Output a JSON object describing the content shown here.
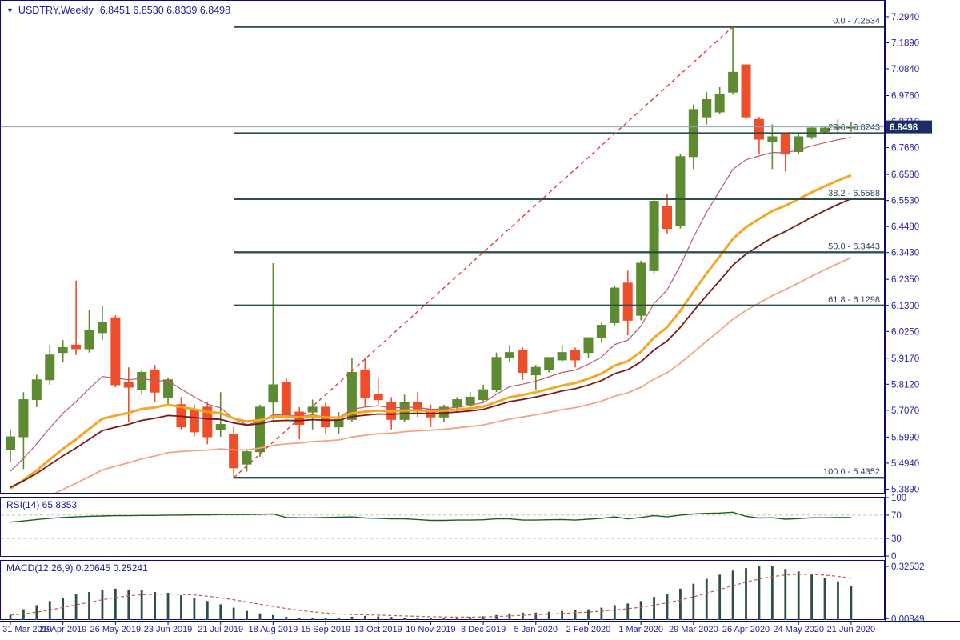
{
  "header": {
    "marker": "▼",
    "symbol": "USDTRY,Weekly",
    "quote_line": "6.8451 6.8530 6.8339 6.8498"
  },
  "rsi_panel": {
    "label": "RSI(14) 65.8353",
    "axis_labels": [
      "100",
      "70",
      "30",
      "0"
    ]
  },
  "macd_panel": {
    "label": "MACD(12,26,9) 0.20645 0.25241",
    "axis_max_label": "0.32532",
    "axis_min_label": "0.00849"
  },
  "price_axis": {
    "labels": [
      "7.2940",
      "7.1890",
      "7.0840",
      "6.9760",
      "6.8710",
      "6.7660",
      "6.6580",
      "6.5530",
      "6.4480",
      "6.3430",
      "6.2350",
      "6.1300",
      "6.0250",
      "5.9170",
      "5.8120",
      "5.7070",
      "5.5990",
      "5.4940",
      "5.3890"
    ],
    "current_price_label": "6.8498"
  },
  "colors": {
    "background": "#ffffff",
    "bull_candle": "#5d8b31",
    "bear_candle": "#ef4e2b",
    "axis_text": "#2525a0",
    "panel_border": "#0a0a70",
    "fib_line": "#2d4f47",
    "fib_text": "#2d3f66",
    "trendline": "#dd3b3b",
    "current_price_line": "#93a3b8",
    "price_badge_bg": "#1b2d66",
    "price_badge_text": "#ffffff",
    "ma_fast": "#bd5a66",
    "ma_medium": "#f5a623",
    "ma_slow": "#7a1b17",
    "ma_slowest": "#f2a482",
    "rsi_line": "#156315",
    "rsi_levels": "#c4c4c4",
    "macd_bars": "#2e4f45",
    "macd_signal": "#c4585a",
    "title_text": "#1b1b9e"
  },
  "chart_data": {
    "type": "candlestick",
    "symbol": "USDTRY",
    "timeframe": "Weekly",
    "quote": {
      "open": 6.8451,
      "high": 6.853,
      "low": 6.8339,
      "close": 6.8498
    },
    "current_price": 6.8498,
    "dates": [
      "31 Mar 2019",
      "28 Apr 2019",
      "26 May 2019",
      "23 Jun 2019",
      "21 Jul 2019",
      "18 Aug 2019",
      "15 Sep 2019",
      "13 Oct 2019",
      "10 Nov 2019",
      "8 Dec 2019",
      "5 Jan 2020",
      "2 Feb 2020",
      "1 Mar 2020",
      "29 Mar 2020",
      "26 Apr 2020",
      "24 May 2020",
      "21 Jun 2020"
    ],
    "date_label_step": 4,
    "candles": [
      [
        5.55,
        5.63,
        5.5,
        5.6
      ],
      [
        5.6,
        5.78,
        5.47,
        5.75
      ],
      [
        5.75,
        5.85,
        5.72,
        5.83
      ],
      [
        5.83,
        5.97,
        5.81,
        5.93
      ],
      [
        5.94,
        5.99,
        5.9,
        5.96
      ],
      [
        5.97,
        6.23,
        5.93,
        5.955
      ],
      [
        5.955,
        6.11,
        5.94,
        6.03
      ],
      [
        6.02,
        6.13,
        5.99,
        6.06
      ],
      [
        6.08,
        6.09,
        5.8,
        5.81
      ],
      [
        5.82,
        5.88,
        5.66,
        5.8
      ],
      [
        5.79,
        5.87,
        5.77,
        5.86
      ],
      [
        5.87,
        5.89,
        5.74,
        5.78
      ],
      [
        5.76,
        5.84,
        5.73,
        5.83
      ],
      [
        5.73,
        5.76,
        5.63,
        5.64
      ],
      [
        5.71,
        5.73,
        5.6,
        5.62
      ],
      [
        5.72,
        5.74,
        5.57,
        5.6
      ],
      [
        5.63,
        5.78,
        5.6,
        5.65
      ],
      [
        5.61,
        5.64,
        5.4352,
        5.475
      ],
      [
        5.49,
        5.55,
        5.46,
        5.54
      ],
      [
        5.54,
        5.73,
        5.52,
        5.72
      ],
      [
        5.74,
        6.3,
        5.67,
        5.81
      ],
      [
        5.82,
        5.84,
        5.67,
        5.69
      ],
      [
        5.7,
        5.72,
        5.59,
        5.65
      ],
      [
        5.7,
        5.75,
        5.63,
        5.72
      ],
      [
        5.72,
        5.74,
        5.61,
        5.64
      ],
      [
        5.64,
        5.7,
        5.61,
        5.67
      ],
      [
        5.67,
        5.92,
        5.66,
        5.86
      ],
      [
        5.87,
        5.92,
        5.72,
        5.76
      ],
      [
        5.77,
        5.84,
        5.73,
        5.75
      ],
      [
        5.74,
        5.76,
        5.63,
        5.67
      ],
      [
        5.67,
        5.77,
        5.66,
        5.74
      ],
      [
        5.74,
        5.78,
        5.68,
        5.71
      ],
      [
        5.71,
        5.73,
        5.64,
        5.68
      ],
      [
        5.68,
        5.73,
        5.66,
        5.72
      ],
      [
        5.72,
        5.76,
        5.7,
        5.75
      ],
      [
        5.73,
        5.78,
        5.71,
        5.76
      ],
      [
        5.75,
        5.81,
        5.74,
        5.79
      ],
      [
        5.79,
        5.94,
        5.78,
        5.92
      ],
      [
        5.92,
        5.97,
        5.9,
        5.94
      ],
      [
        5.95,
        5.96,
        5.83,
        5.86
      ],
      [
        5.85,
        5.89,
        5.79,
        5.88
      ],
      [
        5.87,
        5.92,
        5.86,
        5.92
      ],
      [
        5.91,
        5.97,
        5.9,
        5.94
      ],
      [
        5.95,
        5.96,
        5.88,
        5.91
      ],
      [
        5.94,
        6.0,
        5.92,
        6.0
      ],
      [
        6.0,
        6.06,
        5.98,
        6.05
      ],
      [
        6.06,
        6.21,
        6.05,
        6.2
      ],
      [
        6.22,
        6.27,
        6.01,
        6.07
      ],
      [
        6.09,
        6.31,
        6.07,
        6.3
      ],
      [
        6.27,
        6.56,
        6.26,
        6.55
      ],
      [
        6.53,
        6.58,
        6.42,
        6.44
      ],
      [
        6.45,
        6.74,
        6.44,
        6.73
      ],
      [
        6.73,
        6.94,
        6.68,
        6.92
      ],
      [
        6.89,
        6.99,
        6.86,
        6.96
      ],
      [
        6.91,
        7.01,
        6.9,
        6.98
      ],
      [
        6.99,
        7.2534,
        6.98,
        7.07
      ],
      [
        7.1,
        7.1,
        6.88,
        6.89
      ],
      [
        6.88,
        6.89,
        6.74,
        6.8
      ],
      [
        6.79,
        6.86,
        6.68,
        6.81
      ],
      [
        6.82,
        6.82,
        6.67,
        6.74
      ],
      [
        6.75,
        6.82,
        6.74,
        6.81
      ],
      [
        6.81,
        6.85,
        6.8,
        6.845
      ],
      [
        6.83,
        6.85,
        6.82,
        6.845
      ],
      [
        6.845,
        6.88,
        6.82,
        6.852
      ],
      [
        6.848,
        6.87,
        6.83,
        6.8498
      ]
    ],
    "fibonacci": {
      "anchor_index": 17,
      "levels": [
        {
          "label": "0.0 - 7.2534",
          "price": 7.2534
        },
        {
          "label": "23.6 - 6.8243",
          "price": 6.8243
        },
        {
          "label": "38.2 - 6.5588",
          "price": 6.5588
        },
        {
          "label": "50.0 - 6.3443",
          "price": 6.3443
        },
        {
          "label": "61.8 - 6.1298",
          "price": 6.1298
        },
        {
          "label": "100.0 - 5.4352",
          "price": 5.4352
        }
      ]
    },
    "trendline": {
      "from_index": 17,
      "from_price": 5.4352,
      "to_index": 55,
      "to_price": 7.2534
    },
    "moving_averages": [
      {
        "name": "ma-fast",
        "period": 10,
        "seed": 5.43,
        "color_key": "ma_fast",
        "width": 1.2
      },
      {
        "name": "ma-medium",
        "period": 20,
        "seed": 5.37,
        "color_key": "ma_medium",
        "width": 3
      },
      {
        "name": "ma-slow",
        "period": 26,
        "seed": 5.38,
        "color_key": "ma_slow",
        "width": 1.8
      },
      {
        "name": "ma-slowest",
        "period": 45,
        "seed": 5.28,
        "color_key": "ma_slowest",
        "width": 1.8
      }
    ],
    "rsi": {
      "period": 14,
      "value": 65.8353,
      "levels": [
        70,
        30
      ],
      "range": [
        0,
        100
      ],
      "values": [
        58,
        60,
        62.5,
        64.5,
        66,
        67,
        68,
        68.5,
        69,
        69,
        69.5,
        69.5,
        70,
        70,
        70.5,
        70.5,
        71,
        71,
        71,
        71.5,
        72,
        66,
        65.5,
        65.5,
        66,
        66.5,
        67,
        65,
        64.5,
        63.5,
        63.5,
        62.5,
        61,
        61,
        61.5,
        61.5,
        62,
        63.5,
        63.5,
        61.5,
        61.5,
        62,
        62.5,
        61.5,
        63,
        64.5,
        67,
        63.5,
        66,
        69,
        67,
        70,
        72,
        73,
        73.5,
        75,
        68,
        65,
        65.5,
        63,
        64,
        65.5,
        65.5,
        66,
        65.8
      ]
    },
    "macd": {
      "fast": 12,
      "slow": 26,
      "signal": 9,
      "value_main": 0.20645,
      "value_signal": 0.25241,
      "axis_max": 0.32532,
      "axis_min": 0.00849,
      "histogram": [
        0.03,
        0.065,
        0.09,
        0.115,
        0.135,
        0.155,
        0.17,
        0.185,
        0.19,
        0.185,
        0.18,
        0.17,
        0.165,
        0.15,
        0.135,
        0.115,
        0.095,
        0.075,
        0.055,
        0.04,
        0.03,
        0.02,
        0.015,
        0.012,
        0.012,
        0.015,
        0.02,
        0.025,
        0.022,
        0.018,
        0.015,
        0.012,
        0.01,
        0.012,
        0.015,
        0.018,
        0.022,
        0.03,
        0.04,
        0.045,
        0.045,
        0.05,
        0.055,
        0.06,
        0.065,
        0.075,
        0.09,
        0.1,
        0.115,
        0.14,
        0.16,
        0.19,
        0.22,
        0.25,
        0.275,
        0.3,
        0.315,
        0.325,
        0.325,
        0.31,
        0.295,
        0.275,
        0.255,
        0.235,
        0.206
      ]
    }
  }
}
